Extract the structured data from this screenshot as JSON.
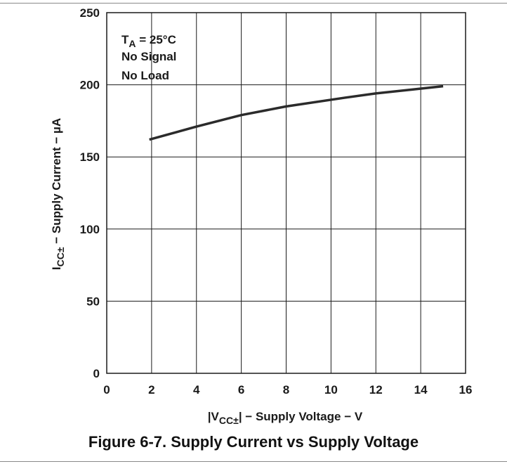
{
  "figure": {
    "caption": "Figure 6-7. Supply Current vs Supply Voltage"
  },
  "chart_data": {
    "type": "line",
    "title": "",
    "xlabel_main": "|V",
    "xlabel_sub": "CC±",
    "xlabel_rest": "| − Supply Voltage − V",
    "ylabel_main": "I",
    "ylabel_sub": "CC±",
    "ylabel_rest": " − Supply Current − µA",
    "xlim": [
      0,
      16
    ],
    "ylim": [
      0,
      250
    ],
    "x_ticks": [
      0,
      2,
      4,
      6,
      8,
      10,
      12,
      14,
      16
    ],
    "y_ticks": [
      0,
      50,
      100,
      150,
      200,
      250
    ],
    "grid": true,
    "annotations": {
      "condition_main": "T",
      "condition_sub": "A",
      "condition_rest": " = 25°C",
      "line2": "No Signal",
      "line3": "No Load"
    },
    "series": [
      {
        "x": [
          1.9,
          4,
          6,
          8,
          10.6,
          12,
          15
        ],
        "values": [
          162,
          171,
          179,
          185,
          191,
          194,
          199
        ]
      }
    ],
    "colors": {
      "line": "#2b2b2b",
      "grid": "#1a1a1a"
    }
  }
}
